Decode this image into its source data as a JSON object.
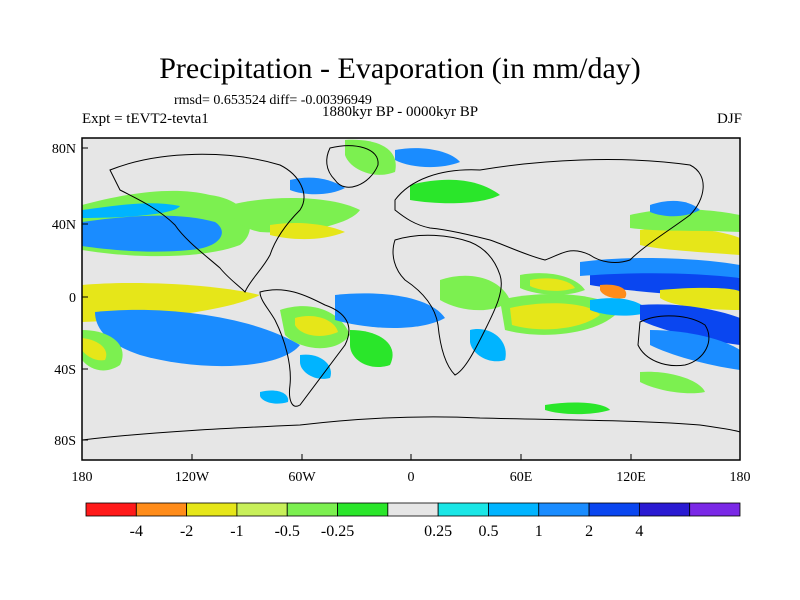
{
  "title": "Precipitation - Evaporation (in mm/day)",
  "stats": "rmsd= 0.653524 diff= -0.00396949",
  "experiment": "Expt = tEVT2-tevta1",
  "period": "1880kyr BP - 0000kyr BP",
  "season": "DJF",
  "map": {
    "background_color": "#e6e6e6",
    "lat_ticks": [
      "80N",
      "40N",
      "0",
      "40S",
      "80S"
    ],
    "lon_ticks": [
      "180",
      "120W",
      "60W",
      "0",
      "60E",
      "120E",
      "180"
    ]
  },
  "colorbar": {
    "colors": [
      "#ff1a1a",
      "#ff8c1a",
      "#e6e619",
      "#c8f05a",
      "#7cf050",
      "#2ae62a",
      "#e6e6e6",
      "#1ae6e6",
      "#00b4ff",
      "#1a8cff",
      "#0a46f0",
      "#2a1ad2",
      "#7a28e6"
    ],
    "labels": [
      "-4",
      "-2",
      "-1",
      "-0.5",
      "-0.25",
      "0.25",
      "0.5",
      "1",
      "2",
      "4"
    ]
  }
}
